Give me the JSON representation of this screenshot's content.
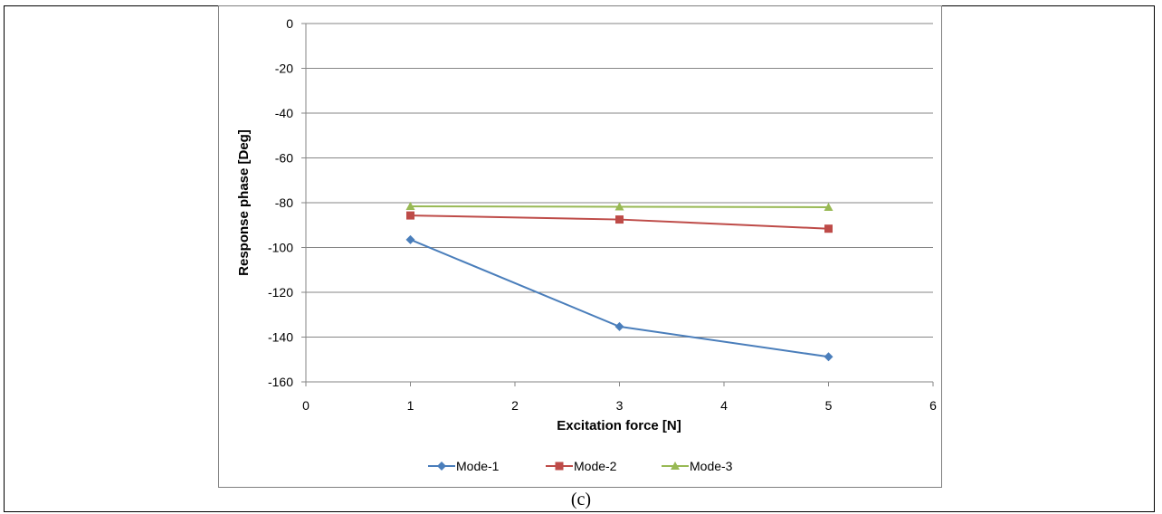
{
  "caption": "(c)",
  "chart_data": {
    "type": "line",
    "xlabel": "Excitation force [N]",
    "ylabel": "Response phase [Deg]",
    "xlim": [
      0,
      6
    ],
    "ylim": [
      -160,
      0
    ],
    "x_ticks": [
      0,
      1,
      2,
      3,
      4,
      5,
      6
    ],
    "y_ticks": [
      0,
      -20,
      -40,
      -60,
      -80,
      -100,
      -120,
      -140,
      -160
    ],
    "grid": "horizontal",
    "legend_position": "bottom",
    "x": [
      1,
      3,
      5
    ],
    "series": [
      {
        "name": "Mode-1",
        "values": [
          -96.5,
          -135.3,
          -148.8
        ],
        "color": "#4a7ebb",
        "marker": "diamond"
      },
      {
        "name": "Mode-2",
        "values": [
          -85.7,
          -87.5,
          -91.6
        ],
        "color": "#be4b48",
        "marker": "square"
      },
      {
        "name": "Mode-3",
        "values": [
          -81.6,
          -81.8,
          -82.0
        ],
        "color": "#98b954",
        "marker": "triangle"
      }
    ]
  }
}
